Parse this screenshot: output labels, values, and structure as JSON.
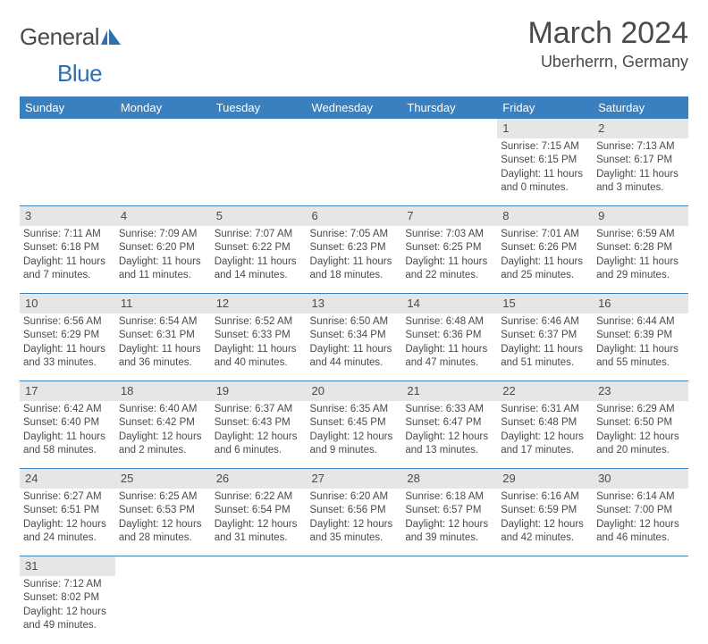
{
  "brand": {
    "general": "General",
    "blue": "Blue"
  },
  "header": {
    "title": "March 2024",
    "location": "Uberherrn, Germany"
  },
  "colors": {
    "header_bg": "#3a80bf",
    "header_text": "#ffffff",
    "daynum_bg": "#e6e6e6",
    "row_border": "#3a80bf",
    "text": "#4a4a4a",
    "logo_blue": "#2f6faf"
  },
  "weekdays": [
    "Sunday",
    "Monday",
    "Tuesday",
    "Wednesday",
    "Thursday",
    "Friday",
    "Saturday"
  ],
  "weeks": [
    {
      "nums": [
        "",
        "",
        "",
        "",
        "",
        "1",
        "2"
      ],
      "cells": [
        null,
        null,
        null,
        null,
        null,
        {
          "sunrise": "Sunrise: 7:15 AM",
          "sunset": "Sunset: 6:15 PM",
          "daylight1": "Daylight: 11 hours",
          "daylight2": "and 0 minutes."
        },
        {
          "sunrise": "Sunrise: 7:13 AM",
          "sunset": "Sunset: 6:17 PM",
          "daylight1": "Daylight: 11 hours",
          "daylight2": "and 3 minutes."
        }
      ]
    },
    {
      "nums": [
        "3",
        "4",
        "5",
        "6",
        "7",
        "8",
        "9"
      ],
      "cells": [
        {
          "sunrise": "Sunrise: 7:11 AM",
          "sunset": "Sunset: 6:18 PM",
          "daylight1": "Daylight: 11 hours",
          "daylight2": "and 7 minutes."
        },
        {
          "sunrise": "Sunrise: 7:09 AM",
          "sunset": "Sunset: 6:20 PM",
          "daylight1": "Daylight: 11 hours",
          "daylight2": "and 11 minutes."
        },
        {
          "sunrise": "Sunrise: 7:07 AM",
          "sunset": "Sunset: 6:22 PM",
          "daylight1": "Daylight: 11 hours",
          "daylight2": "and 14 minutes."
        },
        {
          "sunrise": "Sunrise: 7:05 AM",
          "sunset": "Sunset: 6:23 PM",
          "daylight1": "Daylight: 11 hours",
          "daylight2": "and 18 minutes."
        },
        {
          "sunrise": "Sunrise: 7:03 AM",
          "sunset": "Sunset: 6:25 PM",
          "daylight1": "Daylight: 11 hours",
          "daylight2": "and 22 minutes."
        },
        {
          "sunrise": "Sunrise: 7:01 AM",
          "sunset": "Sunset: 6:26 PM",
          "daylight1": "Daylight: 11 hours",
          "daylight2": "and 25 minutes."
        },
        {
          "sunrise": "Sunrise: 6:59 AM",
          "sunset": "Sunset: 6:28 PM",
          "daylight1": "Daylight: 11 hours",
          "daylight2": "and 29 minutes."
        }
      ]
    },
    {
      "nums": [
        "10",
        "11",
        "12",
        "13",
        "14",
        "15",
        "16"
      ],
      "cells": [
        {
          "sunrise": "Sunrise: 6:56 AM",
          "sunset": "Sunset: 6:29 PM",
          "daylight1": "Daylight: 11 hours",
          "daylight2": "and 33 minutes."
        },
        {
          "sunrise": "Sunrise: 6:54 AM",
          "sunset": "Sunset: 6:31 PM",
          "daylight1": "Daylight: 11 hours",
          "daylight2": "and 36 minutes."
        },
        {
          "sunrise": "Sunrise: 6:52 AM",
          "sunset": "Sunset: 6:33 PM",
          "daylight1": "Daylight: 11 hours",
          "daylight2": "and 40 minutes."
        },
        {
          "sunrise": "Sunrise: 6:50 AM",
          "sunset": "Sunset: 6:34 PM",
          "daylight1": "Daylight: 11 hours",
          "daylight2": "and 44 minutes."
        },
        {
          "sunrise": "Sunrise: 6:48 AM",
          "sunset": "Sunset: 6:36 PM",
          "daylight1": "Daylight: 11 hours",
          "daylight2": "and 47 minutes."
        },
        {
          "sunrise": "Sunrise: 6:46 AM",
          "sunset": "Sunset: 6:37 PM",
          "daylight1": "Daylight: 11 hours",
          "daylight2": "and 51 minutes."
        },
        {
          "sunrise": "Sunrise: 6:44 AM",
          "sunset": "Sunset: 6:39 PM",
          "daylight1": "Daylight: 11 hours",
          "daylight2": "and 55 minutes."
        }
      ]
    },
    {
      "nums": [
        "17",
        "18",
        "19",
        "20",
        "21",
        "22",
        "23"
      ],
      "cells": [
        {
          "sunrise": "Sunrise: 6:42 AM",
          "sunset": "Sunset: 6:40 PM",
          "daylight1": "Daylight: 11 hours",
          "daylight2": "and 58 minutes."
        },
        {
          "sunrise": "Sunrise: 6:40 AM",
          "sunset": "Sunset: 6:42 PM",
          "daylight1": "Daylight: 12 hours",
          "daylight2": "and 2 minutes."
        },
        {
          "sunrise": "Sunrise: 6:37 AM",
          "sunset": "Sunset: 6:43 PM",
          "daylight1": "Daylight: 12 hours",
          "daylight2": "and 6 minutes."
        },
        {
          "sunrise": "Sunrise: 6:35 AM",
          "sunset": "Sunset: 6:45 PM",
          "daylight1": "Daylight: 12 hours",
          "daylight2": "and 9 minutes."
        },
        {
          "sunrise": "Sunrise: 6:33 AM",
          "sunset": "Sunset: 6:47 PM",
          "daylight1": "Daylight: 12 hours",
          "daylight2": "and 13 minutes."
        },
        {
          "sunrise": "Sunrise: 6:31 AM",
          "sunset": "Sunset: 6:48 PM",
          "daylight1": "Daylight: 12 hours",
          "daylight2": "and 17 minutes."
        },
        {
          "sunrise": "Sunrise: 6:29 AM",
          "sunset": "Sunset: 6:50 PM",
          "daylight1": "Daylight: 12 hours",
          "daylight2": "and 20 minutes."
        }
      ]
    },
    {
      "nums": [
        "24",
        "25",
        "26",
        "27",
        "28",
        "29",
        "30"
      ],
      "cells": [
        {
          "sunrise": "Sunrise: 6:27 AM",
          "sunset": "Sunset: 6:51 PM",
          "daylight1": "Daylight: 12 hours",
          "daylight2": "and 24 minutes."
        },
        {
          "sunrise": "Sunrise: 6:25 AM",
          "sunset": "Sunset: 6:53 PM",
          "daylight1": "Daylight: 12 hours",
          "daylight2": "and 28 minutes."
        },
        {
          "sunrise": "Sunrise: 6:22 AM",
          "sunset": "Sunset: 6:54 PM",
          "daylight1": "Daylight: 12 hours",
          "daylight2": "and 31 minutes."
        },
        {
          "sunrise": "Sunrise: 6:20 AM",
          "sunset": "Sunset: 6:56 PM",
          "daylight1": "Daylight: 12 hours",
          "daylight2": "and 35 minutes."
        },
        {
          "sunrise": "Sunrise: 6:18 AM",
          "sunset": "Sunset: 6:57 PM",
          "daylight1": "Daylight: 12 hours",
          "daylight2": "and 39 minutes."
        },
        {
          "sunrise": "Sunrise: 6:16 AM",
          "sunset": "Sunset: 6:59 PM",
          "daylight1": "Daylight: 12 hours",
          "daylight2": "and 42 minutes."
        },
        {
          "sunrise": "Sunrise: 6:14 AM",
          "sunset": "Sunset: 7:00 PM",
          "daylight1": "Daylight: 12 hours",
          "daylight2": "and 46 minutes."
        }
      ]
    },
    {
      "nums": [
        "31",
        "",
        "",
        "",
        "",
        "",
        ""
      ],
      "cells": [
        {
          "sunrise": "Sunrise: 7:12 AM",
          "sunset": "Sunset: 8:02 PM",
          "daylight1": "Daylight: 12 hours",
          "daylight2": "and 49 minutes."
        },
        null,
        null,
        null,
        null,
        null,
        null
      ]
    }
  ]
}
